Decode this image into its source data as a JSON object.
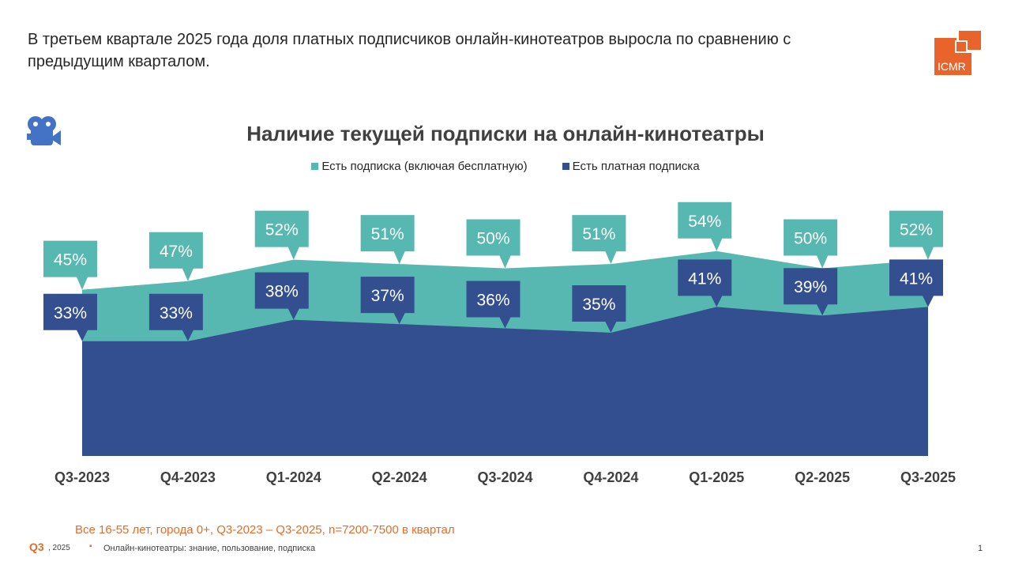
{
  "headline": "В третьем квартале 2025 года доля платных подписчиков онлайн-кинотеатров выросла по сравнению с предыдущим кварталом.",
  "logo": {
    "text": "ICMR",
    "color": "#E8642A"
  },
  "icons": {
    "chart_icon": "movie-camera-icon"
  },
  "chart_data": {
    "type": "area",
    "title": "Наличие текущей подписки на онлайн-кинотеатры",
    "categories": [
      "Q3-2023",
      "Q4-2023",
      "Q1-2024",
      "Q2-2024",
      "Q3-2024",
      "Q4-2024",
      "Q1-2025",
      "Q2-2025",
      "Q3-2025"
    ],
    "legend_position": "top",
    "grid": false,
    "unit": "%",
    "series": [
      {
        "name": "Есть подписка (включая бесплатную)",
        "color": "#56B8B0",
        "values": [
          45,
          47,
          52,
          51,
          50,
          51,
          54,
          50,
          52
        ],
        "labels": [
          "45%",
          "47%",
          "52%",
          "51%",
          "50%",
          "51%",
          "54%",
          "50%",
          "52%"
        ]
      },
      {
        "name": "Есть платная подписка",
        "color": "#334F8F",
        "values": [
          33,
          33,
          38,
          37,
          36,
          35,
          41,
          39,
          41
        ],
        "labels": [
          "33%",
          "33%",
          "38%",
          "37%",
          "36%",
          "35%",
          "41%",
          "39%",
          "41%"
        ]
      }
    ]
  },
  "footer": {
    "sample_note": "Все 16-55 лет, города 0+, Q3-2023 – Q3-2025, n=7200-7500 в квартал",
    "quarter": "Q3",
    "year": ", 2025",
    "bullet": "▪",
    "source": "Онлайн-кинотеатры: знание, пользование, подписка",
    "page": "1"
  }
}
